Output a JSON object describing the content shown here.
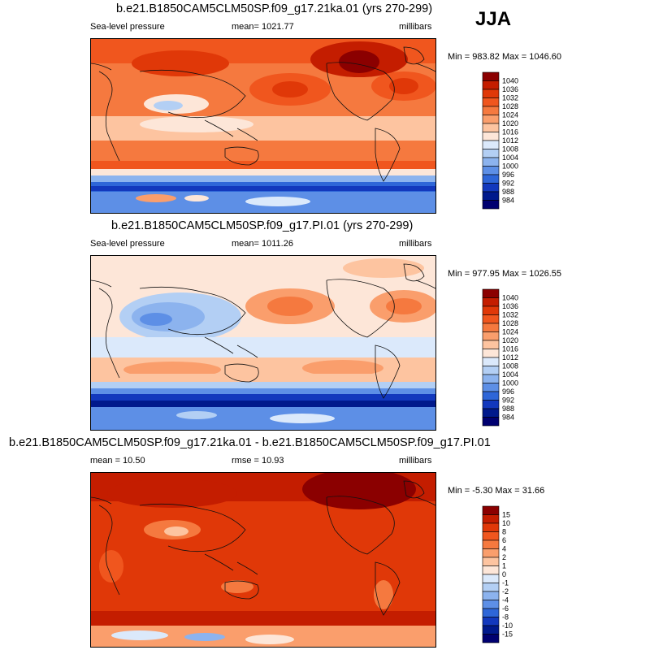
{
  "season": "JJA",
  "panels": [
    {
      "title": "b.e21.B1850CAM5CLM50SP.f09_g17.21ka.01 (yrs 270-299)",
      "left_label": "Sea-level pressure",
      "center_label": "mean= 1021.77",
      "right_label": "millibars",
      "stats": "Min = 983.82 Max = 1046.60",
      "colorbar_labels": [
        "1040",
        "1036",
        "1032",
        "1028",
        "1024",
        "1020",
        "1016",
        "1012",
        "1008",
        "1004",
        "1000",
        "996",
        "992",
        "988",
        "984"
      ]
    },
    {
      "title": "b.e21.B1850CAM5CLM50SP.f09_g17.PI.01 (yrs 270-299)",
      "left_label": "Sea-level pressure",
      "center_label": "mean= 1011.26",
      "right_label": "millibars",
      "stats": "Min = 977.95 Max = 1026.55",
      "colorbar_labels": [
        "1040",
        "1036",
        "1032",
        "1028",
        "1024",
        "1020",
        "1016",
        "1012",
        "1008",
        "1004",
        "1000",
        "996",
        "992",
        "988",
        "984"
      ]
    },
    {
      "title": "b.e21.B1850CAM5CLM50SP.f09_g17.21ka.01 - b.e21.B1850CAM5CLM50SP.f09_g17.PI.01",
      "left_label": "mean =  10.50",
      "center_label": "rmse =  10.93",
      "right_label": "millibars",
      "stats": "Min =  -5.30 Max =  31.66",
      "colorbar_labels": [
        "15",
        "10",
        "8",
        "6",
        "4",
        "2",
        "1",
        "0",
        "-1",
        "-2",
        "-4",
        "-6",
        "-8",
        "-10",
        "-15"
      ]
    }
  ],
  "colors": {
    "abs_scale": [
      "#8b0000",
      "#c41d00",
      "#e03808",
      "#f0561e",
      "#f5793f",
      "#fa9e6c",
      "#fdc4a0",
      "#fde6d8",
      "#dbe9fb",
      "#b3cff4",
      "#8cb3ee",
      "#5d8fe6",
      "#2e66d8",
      "#1238bd",
      "#00198c",
      "#000070"
    ],
    "diff_scale": [
      "#8b0000",
      "#c41d00",
      "#e03808",
      "#f0561e",
      "#f5793f",
      "#fa9e6c",
      "#fdc4a0",
      "#fde6d8",
      "#dbe9fb",
      "#b3cff4",
      "#8cb3ee",
      "#5d8fe6",
      "#2e66d8",
      "#1238bd",
      "#00198c",
      "#000070"
    ]
  }
}
